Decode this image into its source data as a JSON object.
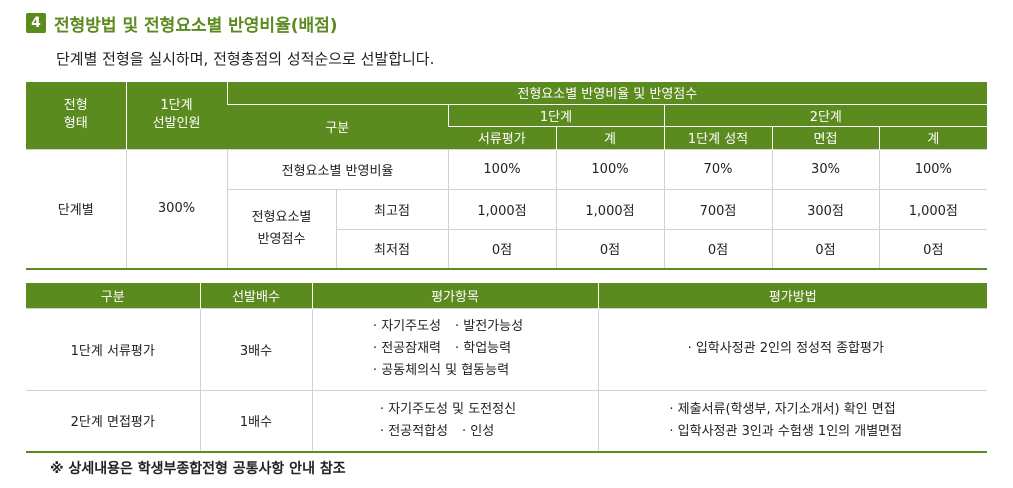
{
  "section": {
    "number": "4",
    "title": "전형방법 및 전형요소별 반영비율(배점)",
    "description": "단계별 전형을 실시하며, 전형총점의 성적순으로 선발합니다."
  },
  "table1": {
    "headers": {
      "type": "전형\n형태",
      "stage1_select": "1단계\n선발인원",
      "reflection_header": "전형요소별 반영비율 및 반영점수",
      "division": "구분",
      "stage1": "1단계",
      "stage2": "2단계",
      "doc_eval": "서류평가",
      "total1": "계",
      "stage1_score": "1단계 성적",
      "interview": "면접",
      "total2": "계"
    },
    "type_value": "단계별",
    "select_value": "300%",
    "ratio_label": "전형요소별 반영비율",
    "ratio_values": [
      "100%",
      "100%",
      "70%",
      "30%",
      "100%"
    ],
    "score_label": "전형요소별\n반영점수",
    "max_label": "최고점",
    "max_values": [
      "1,000점",
      "1,000점",
      "700점",
      "300점",
      "1,000점"
    ],
    "min_label": "최저점",
    "min_values": [
      "0점",
      "0점",
      "0점",
      "0점",
      "0점"
    ]
  },
  "table2": {
    "headers": [
      "구분",
      "선발배수",
      "평가항목",
      "평가방법"
    ],
    "rows": [
      {
        "stage": "1단계 서류평가",
        "multiple": "3배수",
        "items": [
          [
            "자기주도성",
            "발전가능성"
          ],
          [
            "전공잠재력",
            "학업능력"
          ],
          [
            "공동체의식 및 협동능력"
          ]
        ],
        "methods": [
          "입학사정관 2인의 정성적 종합평가"
        ]
      },
      {
        "stage": "2단계 면접평가",
        "multiple": "1배수",
        "items": [
          [
            "자기주도성 및 도전정신"
          ],
          [
            "전공적합성",
            "인성"
          ]
        ],
        "methods": [
          "제출서류(학생부, 자기소개서) 확인 면접",
          "입학사정관 3인과 수험생 1인의 개별면접"
        ]
      }
    ]
  },
  "note": "※ 상세내용은 학생부종합전형 공통사항 안내 참조",
  "colors": {
    "accent": "#5b8a1e",
    "border": "#d2d2d2"
  }
}
